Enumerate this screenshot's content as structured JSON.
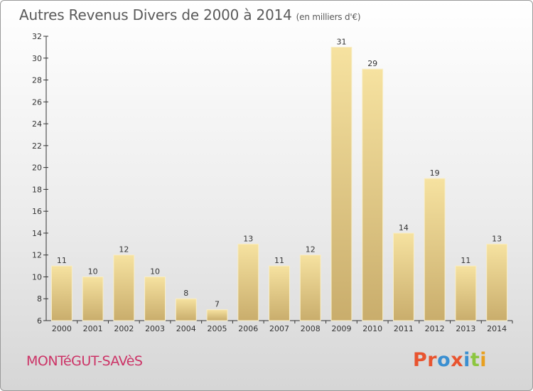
{
  "header": {
    "title": "Autres Revenus Divers de 2000 à 2014",
    "subtitle": "(en milliers d'€)"
  },
  "footer": {
    "city": "MONTéGUT-SAVèS",
    "logo_text": "Proxiti",
    "logo_colors": [
      "#e8542f",
      "#e8542f",
      "#3a8fd1",
      "#e8542f",
      "#3a8fd1",
      "#8cc63f",
      "#e8a020"
    ]
  },
  "colors": {
    "bar_light": "#f6e2a0",
    "bar_dark": "#c9ad6c",
    "axis": "#333333",
    "label": "#333333"
  },
  "chart_data": {
    "type": "bar",
    "categories": [
      "2000",
      "2001",
      "2002",
      "2003",
      "2004",
      "2005",
      "2006",
      "2007",
      "2008",
      "2009",
      "2010",
      "2011",
      "2012",
      "2013",
      "2014"
    ],
    "values": [
      11,
      10,
      12,
      10,
      8,
      7,
      13,
      11,
      12,
      31,
      29,
      14,
      19,
      11,
      13
    ],
    "title": "Autres Revenus Divers de 2000 à 2014",
    "subtitle": "(en milliers d'€)",
    "ylim": [
      6,
      32
    ],
    "yticks": [
      6,
      8,
      10,
      12,
      14,
      16,
      18,
      20,
      22,
      24,
      26,
      28,
      30,
      32
    ],
    "grid": false,
    "data_labels": true
  }
}
